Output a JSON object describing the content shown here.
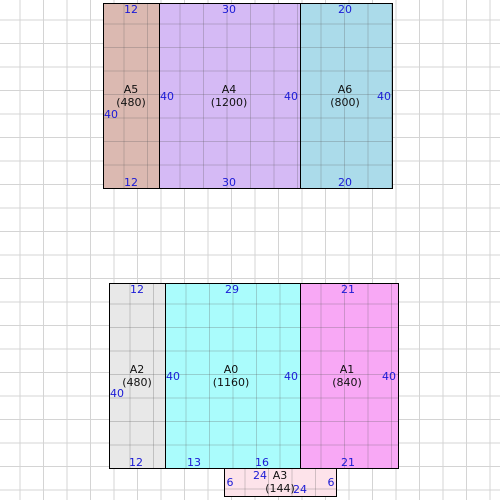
{
  "colors": {
    "A5": "#dbb9b1",
    "A4": "#d5baf5",
    "A6": "#abdbea",
    "A2": "#e8e8e8",
    "A0": "#aafcfc",
    "A1": "#f8a8f5",
    "A3": "#fde3ea",
    "dimension_text": "#1a1ad6"
  },
  "rects": {
    "A5": {
      "name": "A5",
      "area": "(480)",
      "top": "12",
      "bottom": "12",
      "left": "40"
    },
    "A4": {
      "name": "A4",
      "area": "(1200)",
      "top": "30",
      "bottom": "30",
      "left": "40",
      "right": "40"
    },
    "A6": {
      "name": "A6",
      "area": "(800)",
      "top": "20",
      "bottom": "20",
      "right": "40"
    },
    "A2": {
      "name": "A2",
      "area": "(480)",
      "top": "12",
      "bottom": "12",
      "left": "40"
    },
    "A0": {
      "name": "A0",
      "area": "(1160)",
      "top": "29",
      "bottom_left": "13",
      "bottom_right": "16",
      "left": "40",
      "right": "40"
    },
    "A1": {
      "name": "A1",
      "area": "(840)",
      "top": "21",
      "bottom": "21",
      "right": "40"
    },
    "A3": {
      "name": "A3",
      "area": "(144)",
      "top": "24",
      "bottom": "24",
      "left": "6",
      "right": "6"
    }
  }
}
